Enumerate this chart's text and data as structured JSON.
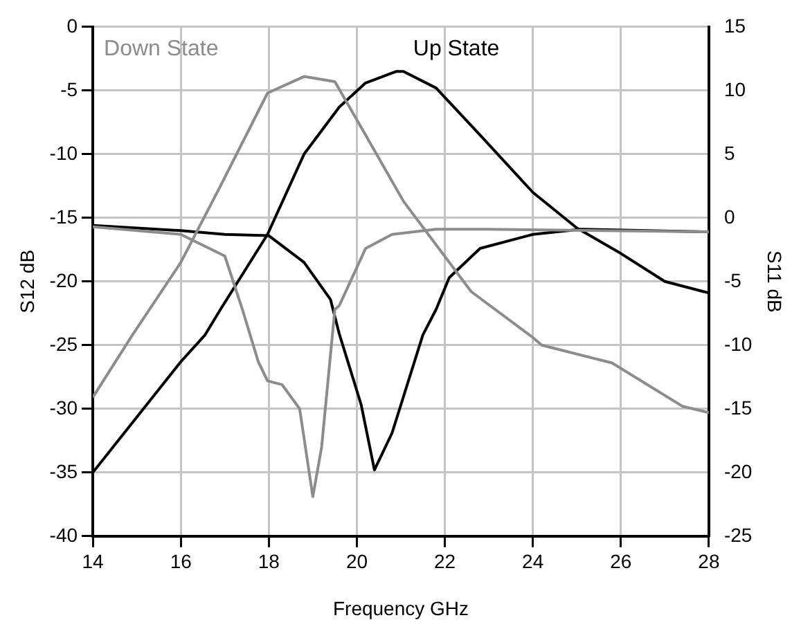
{
  "chart_data": {
    "type": "line",
    "xlabel": "Frequency GHz",
    "ylabel": "S12 dB",
    "y2label": "S11 dB",
    "xlim": [
      14,
      28
    ],
    "xticks": [
      14,
      16,
      18,
      20,
      22,
      24,
      26,
      28
    ],
    "ylim": [
      -40,
      0
    ],
    "yticks": [
      -40,
      -35,
      -30,
      -25,
      -20,
      -15,
      -10,
      -5,
      0
    ],
    "y2lim": [
      -25,
      15
    ],
    "y2ticks": [
      -25,
      -20,
      -15,
      -10,
      -5,
      0,
      5,
      10,
      15
    ],
    "grid": true,
    "legend": false,
    "marker": "none",
    "line_style": "solid",
    "series": [
      {
        "name": "Down State",
        "color": "#8c8c8c",
        "x": [
          14,
          14.9,
          16,
          16.9,
          17.97,
          18.8,
          19.5,
          20.2,
          21.06,
          22.6,
          24,
          24.2,
          25.8,
          27.4,
          28
        ],
        "values": [
          -29.1,
          -24.2,
          -18.5,
          -12.5,
          -5.2,
          -3.9,
          -4.3,
          -8.5,
          -13.7,
          -20.8,
          -24.4,
          -25,
          -26.4,
          -29.8,
          -30.3
        ]
      },
      {
        "color": "#8c8c8c",
        "axis": "y2",
        "x": [
          14,
          16,
          17,
          17.4,
          17.76,
          17.97,
          18.3,
          18.7,
          19,
          19.2,
          19.5,
          19.6,
          20.2,
          20.8,
          21.8,
          22.9,
          28
        ],
        "values": [
          -0.7,
          -1.3,
          -3,
          -7.2,
          -11.3,
          -12.8,
          -13.1,
          -15,
          -21.9,
          -18,
          -7.2,
          -6.9,
          -2.4,
          -1.3,
          -0.9,
          -0.9,
          -1.1
        ]
      },
      {
        "name": "Up State",
        "color": "#000000",
        "x": [
          14,
          16,
          16.55,
          16.9,
          17.97,
          18.8,
          19.6,
          20.2,
          20.9,
          21.06,
          21.8,
          22.8,
          24,
          25,
          26,
          27,
          28
        ],
        "values": [
          -35,
          -26.3,
          -24.2,
          -22.2,
          -16.3,
          -10,
          -6.3,
          -4.4,
          -3.5,
          -3.5,
          -4.8,
          -8.5,
          -13,
          -15.8,
          -17.8,
          -20,
          -20.9
        ]
      },
      {
        "color": "#000000",
        "axis": "y2",
        "x": [
          14,
          16,
          17,
          18,
          18.8,
          19.4,
          19.6,
          20.1,
          20.4,
          20.8,
          21.5,
          21.8,
          22.1,
          22.8,
          24,
          25.1,
          28
        ],
        "values": [
          -0.6,
          -1,
          -1.3,
          -1.4,
          -3.5,
          -6.4,
          -9.1,
          -14.7,
          -19.8,
          -16.9,
          -9.2,
          -7.2,
          -4.7,
          -2.4,
          -1.3,
          -0.9,
          -1.1
        ]
      }
    ]
  }
}
